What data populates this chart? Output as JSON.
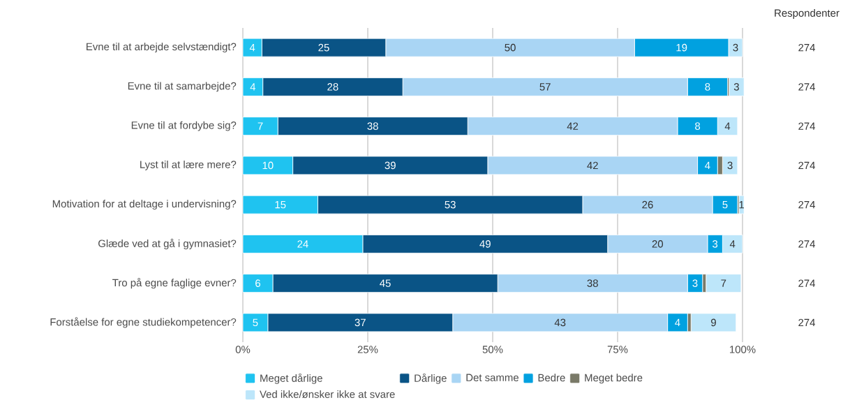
{
  "chart_data": {
    "type": "bar",
    "orientation": "horizontal",
    "stacked": true,
    "categories": [
      "Evne til at arbejde selvstændigt?",
      "Evne til at samarbejde?",
      "Evne til at fordybe sig?",
      "Lyst til at lære mere?",
      "Motivation for at deltage i undervisning?",
      "Glæde ved at gå i gymnasiet?",
      "Tro på egne faglige evner?",
      "Forståelse for egne studiekompetencer?"
    ],
    "series": [
      {
        "name": "Meget dårlige",
        "color": "#1fc3f0",
        "values": [
          3.8,
          4,
          7,
          10,
          15,
          24,
          6,
          5
        ],
        "value_labels": [
          "4",
          "4",
          "7",
          "10",
          "15",
          "24",
          "6",
          "5"
        ]
      },
      {
        "name": "Dårlige",
        "color": "#0a5486",
        "values": [
          24.8,
          28,
          38,
          39,
          53,
          49,
          45,
          37
        ],
        "value_labels": [
          "25",
          "28",
          "38",
          "39",
          "53",
          "49",
          "45",
          "37"
        ]
      },
      {
        "name": "Det samme",
        "color": "#a9d5f4",
        "values": [
          49.8,
          57,
          42,
          42,
          26,
          20,
          38,
          43
        ],
        "value_labels": [
          "50",
          "57",
          "42",
          "42",
          "26",
          "20",
          "38",
          "43"
        ]
      },
      {
        "name": "Bedre",
        "color": "#01a1e0",
        "values": [
          18.8,
          8,
          8,
          4,
          5,
          3,
          3,
          4
        ],
        "value_labels": [
          "19",
          "8",
          "8",
          "4",
          "5",
          "3",
          "3",
          "4"
        ]
      },
      {
        "name": "Meget bedre",
        "color": "#7a7a68",
        "values": [
          0,
          0.3,
          0,
          1,
          0.3,
          0,
          0.7,
          0.7
        ],
        "value_labels": [
          null,
          null,
          null,
          null,
          null,
          null,
          null,
          null
        ]
      },
      {
        "name": "Ved ikke/ønsker ikke at svare",
        "color": "#bde6fa",
        "values": [
          2.8,
          3,
          4,
          3,
          1,
          4,
          7,
          9
        ],
        "value_labels": [
          "3",
          "3",
          "4",
          "3",
          "1",
          "4",
          "7",
          "9"
        ]
      }
    ],
    "xlim": [
      0,
      100
    ],
    "xticks": [
      {
        "value": 0,
        "label": "0%"
      },
      {
        "value": 25,
        "label": "25%"
      },
      {
        "value": 50,
        "label": "50%"
      },
      {
        "value": 75,
        "label": "75%"
      },
      {
        "value": 100,
        "label": "100%"
      }
    ],
    "grid": "x",
    "legend": "bottom",
    "annotations": [
      "Respondenter",
      "274",
      "274",
      "274",
      "274",
      "274",
      "274",
      "274",
      "274"
    ]
  }
}
